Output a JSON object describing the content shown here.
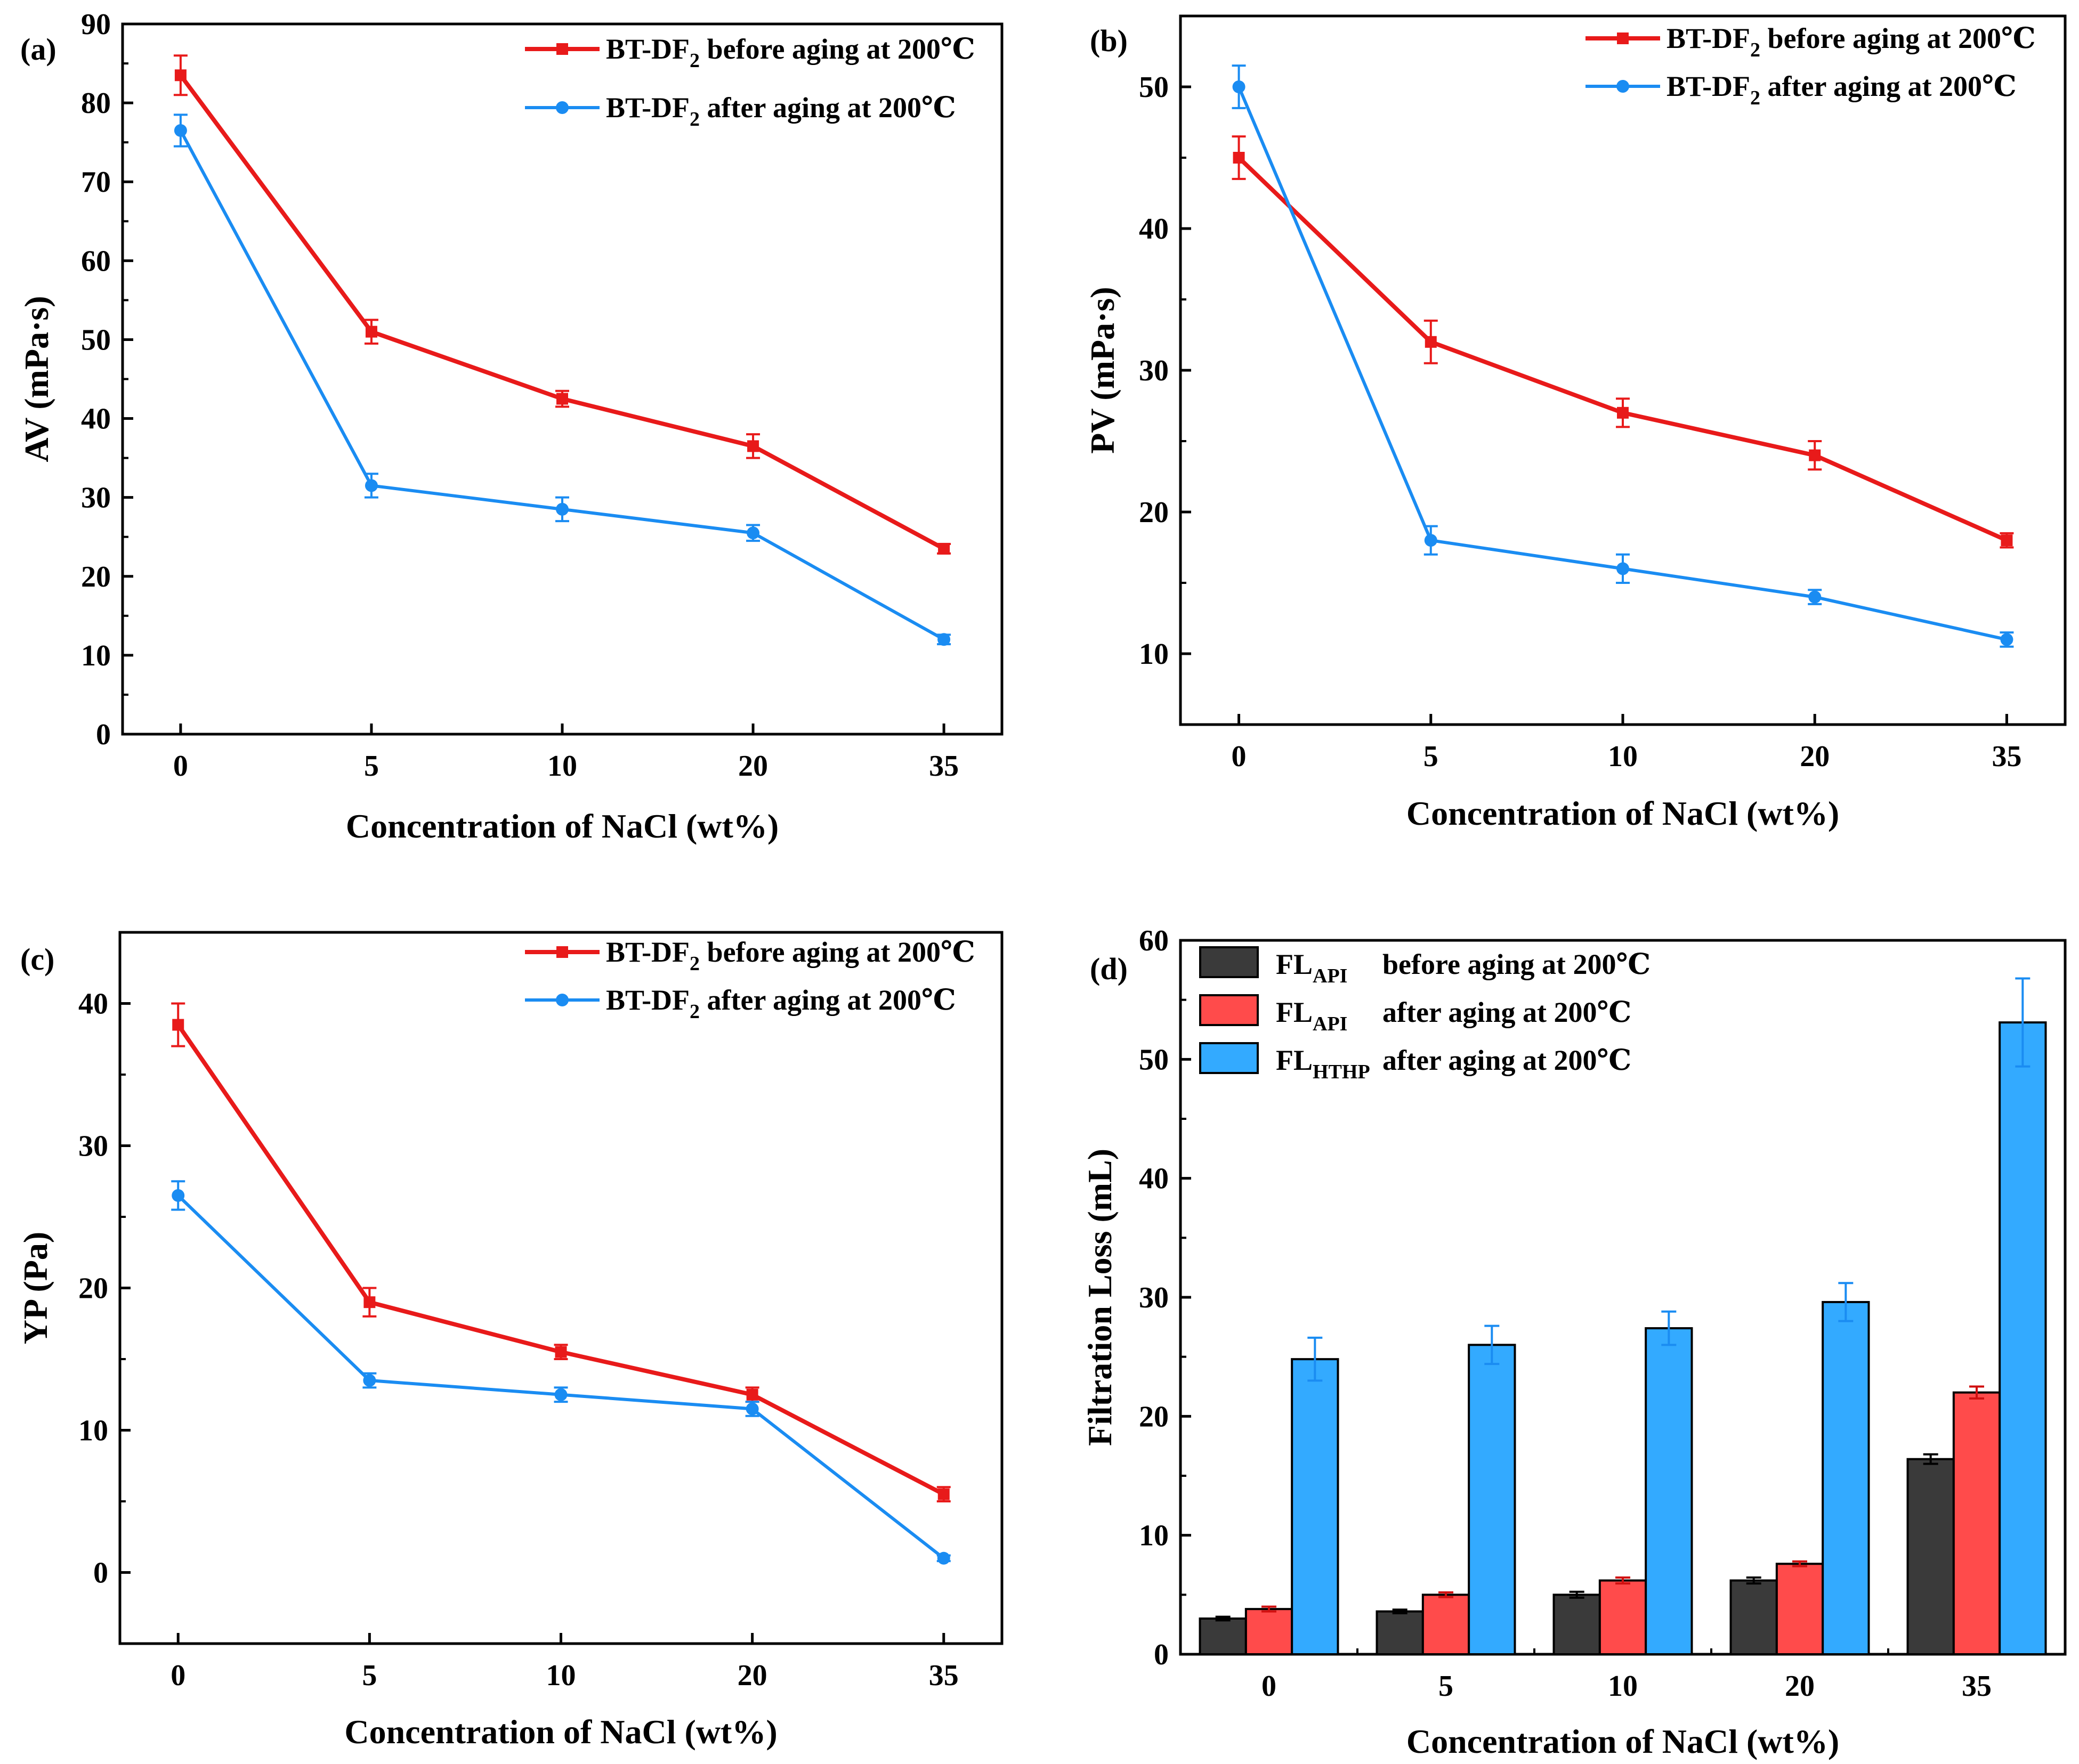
{
  "colors": {
    "red": "#e81a1a",
    "blue": "#1a8cf2",
    "dark_bar": "#3a3a3a",
    "red_bar": "#ff4b4b",
    "blue_bar": "#33aaff",
    "axis": "#000000"
  },
  "chart_data": [
    {
      "panel": "(a)",
      "type": "line",
      "categories": [
        "0",
        "5",
        "10",
        "20",
        "35"
      ],
      "xlabel": "Concentration of NaCl (wt%)",
      "ylabel": "AV (mPa·s)",
      "ylim": [
        0,
        90
      ],
      "yticks": [
        0,
        10,
        20,
        30,
        40,
        50,
        60,
        70,
        80,
        90
      ],
      "series": [
        {
          "name": "BT-DF",
          "sub": "2",
          "suffix": " before aging at 200℃",
          "color": "#e81a1a",
          "marker": "square",
          "values": [
            83.5,
            51,
            42.5,
            36.5,
            23.5
          ],
          "errors": [
            2.5,
            1.5,
            1.0,
            1.5,
            0.6
          ]
        },
        {
          "name": "BT-DF",
          "sub": "2",
          "suffix": " after aging at 200℃",
          "color": "#1a8cf2",
          "marker": "circle",
          "values": [
            76.5,
            31.5,
            28.5,
            25.5,
            12
          ],
          "errors": [
            2.0,
            1.5,
            1.5,
            1.0,
            0.6
          ]
        }
      ]
    },
    {
      "panel": "(b)",
      "type": "line",
      "categories": [
        "0",
        "5",
        "10",
        "20",
        "35"
      ],
      "xlabel": "Concentration of NaCl (wt%)",
      "ylabel": "PV (mPa·s)",
      "ylim": [
        5,
        55
      ],
      "yticks": [
        10,
        20,
        30,
        40,
        50
      ],
      "series": [
        {
          "name": "BT-DF",
          "sub": "2",
          "suffix": " before aging at 200℃",
          "color": "#e81a1a",
          "marker": "square",
          "values": [
            45,
            32,
            27,
            24,
            18
          ],
          "errors": [
            1.5,
            1.5,
            1.0,
            1.0,
            0.5
          ]
        },
        {
          "name": "BT-DF",
          "sub": "2",
          "suffix": " after aging at 200℃",
          "color": "#1a8cf2",
          "marker": "circle",
          "values": [
            50,
            18,
            16,
            14,
            11
          ],
          "errors": [
            1.5,
            1.0,
            1.0,
            0.5,
            0.5
          ]
        }
      ]
    },
    {
      "panel": "(c)",
      "type": "line",
      "categories": [
        "0",
        "5",
        "10",
        "20",
        "35"
      ],
      "xlabel": "Concentration of NaCl (wt%)",
      "ylabel": "YP (Pa)",
      "ylim": [
        -5,
        45
      ],
      "yticks": [
        0,
        10,
        20,
        30,
        40
      ],
      "series": [
        {
          "name": "BT-DF",
          "sub": "2",
          "suffix": " before aging at 200℃",
          "color": "#e81a1a",
          "marker": "square",
          "values": [
            38.5,
            19,
            15.5,
            12.5,
            5.5
          ],
          "errors": [
            1.5,
            1.0,
            0.5,
            0.5,
            0.5
          ]
        },
        {
          "name": "BT-DF",
          "sub": "2",
          "suffix": " after aging at 200℃",
          "color": "#1a8cf2",
          "marker": "circle",
          "values": [
            26.5,
            13.5,
            12.5,
            11.5,
            1
          ],
          "errors": [
            1.0,
            0.5,
            0.5,
            0.5,
            0.2
          ]
        }
      ]
    },
    {
      "panel": "(d)",
      "type": "bar",
      "categories": [
        "0",
        "5",
        "10",
        "20",
        "35"
      ],
      "xlabel": "Concentration of NaCl (wt%)",
      "ylabel": "Filtration Loss (mL)",
      "ylim": [
        0,
        60
      ],
      "yticks": [
        0,
        10,
        20,
        30,
        40,
        50,
        60
      ],
      "series": [
        {
          "name": "FL",
          "sub": "API",
          "suffix": "before aging at 200℃",
          "color": "#3a3a3a",
          "values": [
            3.0,
            3.6,
            5.0,
            6.2,
            16.4
          ],
          "errors": [
            0.15,
            0.15,
            0.25,
            0.25,
            0.4
          ]
        },
        {
          "name": "FL",
          "sub": "API",
          "suffix": "after aging at 200℃",
          "color": "#ff4b4b",
          "values": [
            3.8,
            5.0,
            6.2,
            7.6,
            22.0
          ],
          "errors": [
            0.2,
            0.2,
            0.25,
            0.2,
            0.5
          ]
        },
        {
          "name": "FL",
          "sub": "HTHP",
          "suffix": "after aging at 200℃",
          "color": "#33aaff",
          "values": [
            24.8,
            26.0,
            27.4,
            29.6,
            53.1
          ],
          "errors": [
            1.8,
            1.6,
            1.4,
            1.6,
            3.7
          ]
        }
      ]
    }
  ]
}
